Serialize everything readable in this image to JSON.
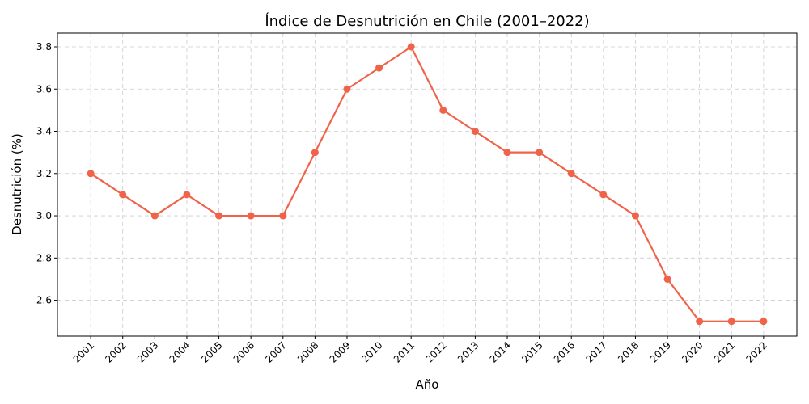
{
  "chart_data": {
    "type": "line",
    "title": "Índice de Desnutrición en Chile (2001–2022)",
    "xlabel": "Año",
    "ylabel": "Desnutrición (%)",
    "x": [
      "2001",
      "2002",
      "2003",
      "2004",
      "2005",
      "2006",
      "2007",
      "2008",
      "2009",
      "2010",
      "2011",
      "2012",
      "2013",
      "2014",
      "2015",
      "2016",
      "2017",
      "2018",
      "2019",
      "2020",
      "2021",
      "2022"
    ],
    "series": [
      {
        "values": [
          3.2,
          3.1,
          3.0,
          3.1,
          3.0,
          3.0,
          3.0,
          3.3,
          3.6,
          3.7,
          3.8,
          3.5,
          3.4,
          3.3,
          3.3,
          3.2,
          3.1,
          3.0,
          2.7,
          2.5,
          2.5,
          2.5
        ],
        "color": "#f0634a"
      }
    ],
    "yticks": [
      "2.6",
      "2.8",
      "3.0",
      "3.2",
      "3.4",
      "3.6",
      "3.8"
    ],
    "ylim": [
      2.43,
      3.865
    ],
    "grid": true,
    "marker": "circle"
  }
}
